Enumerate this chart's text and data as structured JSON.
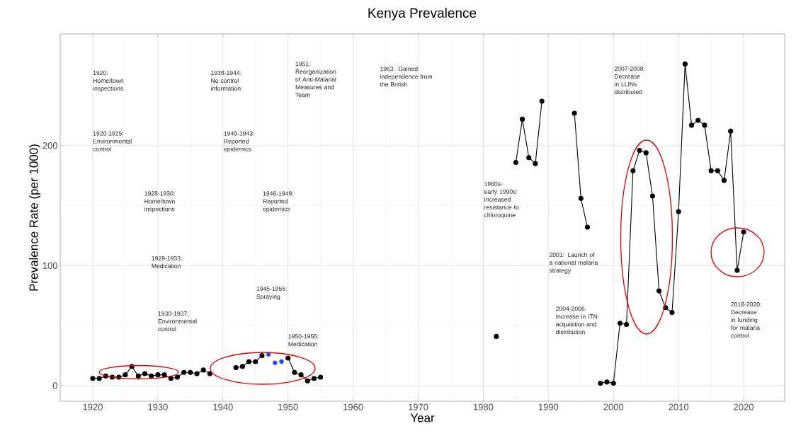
{
  "chart_data": {
    "type": "line",
    "title": "Kenya Prevalence",
    "xlabel": "Year",
    "ylabel": "Prevalence Rate (per 1000)",
    "xlim": [
      1915,
      2026.3
    ],
    "ylim": [
      -13,
      293
    ],
    "xticks": [
      1920,
      1930,
      1940,
      1950,
      1960,
      1970,
      1980,
      1990,
      2000,
      2010,
      2020
    ],
    "yticks": [
      0,
      100,
      200
    ],
    "grid": true,
    "legend": false,
    "marker": "circle",
    "line_style": "solid",
    "series": [
      {
        "color": "#000000",
        "x": [
          1920,
          1921,
          1922,
          1923,
          1924,
          1925,
          1926,
          1927,
          1928,
          1929,
          1930,
          1931,
          1932,
          1933,
          1934,
          1935,
          1936,
          1937,
          1938,
          1939,
          1942,
          1943,
          1944,
          1945,
          1946,
          1947,
          1950,
          1951,
          1952,
          1953,
          1954,
          1955,
          1956,
          1982,
          1983,
          1985,
          1986,
          1987,
          1988,
          1989,
          1990,
          1994,
          1995,
          1996,
          1997,
          1998,
          1999,
          2000,
          2001,
          2002,
          2003,
          2004,
          2005,
          2006,
          2007,
          2008,
          2009,
          2010,
          2011,
          2012,
          2013,
          2014,
          2015,
          2016,
          2017,
          2018,
          2019,
          2020
        ],
        "values": [
          6,
          6,
          8,
          7,
          7,
          9,
          16,
          8,
          10,
          8,
          9,
          9,
          6,
          7,
          11,
          11,
          10,
          13,
          10,
          null,
          15,
          16,
          20,
          20,
          25,
          null,
          23,
          11,
          9,
          4,
          6,
          7,
          null,
          41,
          null,
          186,
          222,
          190,
          185,
          237,
          null,
          227,
          156,
          132,
          null,
          2,
          3,
          2,
          52,
          51,
          179,
          196,
          194,
          158,
          79,
          65,
          61,
          145,
          268,
          217,
          221,
          217,
          179,
          179,
          171,
          212,
          96,
          128
        ]
      },
      {
        "type": "scatter",
        "color": "#1f3fff",
        "x": [
          1947,
          1948,
          1949
        ],
        "values": [
          26,
          19,
          20
        ]
      }
    ],
    "annotations": [
      "1920: Home/town inspections",
      "1920-1925: Environmental control",
      "1928-1930: Home/town inspections",
      "1929-1933: Medication",
      "1930-1937: Environmental control",
      "1938-1944: No control information",
      "1940-1943: Reported epidemics",
      "1946-1949: Reported epidemics",
      "1945-1955: Spraying",
      "1950-1955: Medication",
      "1951: Reorganization of Anti-Malarial Measures and Team",
      "1963: Gained independence from the British",
      "1980s- early 1990s: Increased resistance to chloroquine",
      "2001: Launch of a national malaria strategy",
      "2004-2006: Increase in ITN acquisition and distribution",
      "2007-2008: Decrease in LLINs distributed",
      "2018-2020: Decrease in funding for malaria control"
    ]
  }
}
